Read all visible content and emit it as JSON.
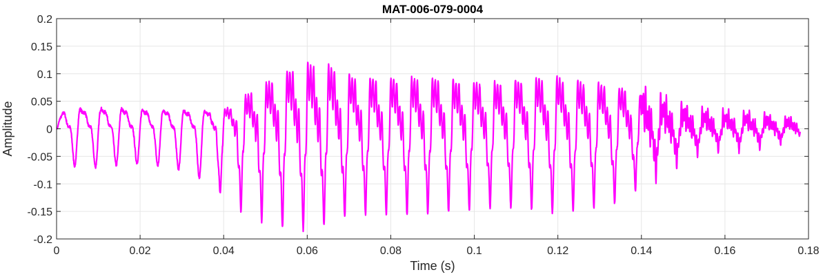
{
  "chart_data": {
    "type": "line",
    "title": "MAT-006-079-0004",
    "xlabel": "Time (s)",
    "ylabel": "Amplitude",
    "xlim": [
      0,
      0.18
    ],
    "ylim": [
      -0.2,
      0.2
    ],
    "xticks": [
      0,
      0.02,
      0.04,
      0.06,
      0.08,
      0.1,
      0.12,
      0.14,
      0.16,
      0.18
    ],
    "xtick_labels": [
      "0",
      "0.02",
      "0.04",
      "0.06",
      "0.08",
      "0.1",
      "0.12",
      "0.14",
      "0.16",
      "0.18"
    ],
    "yticks": [
      -0.2,
      -0.15,
      -0.1,
      -0.05,
      0,
      0.05,
      0.1,
      0.15,
      0.2
    ],
    "ytick_labels": [
      "-0.2",
      "-0.15",
      "-0.1",
      "-0.05",
      "0",
      "0.05",
      "0.1",
      "0.15",
      "0.2"
    ],
    "grid": true,
    "series": [
      {
        "color": "#ff00ff",
        "x_start": 0,
        "x_end": 0.178,
        "period": 0.00497,
        "envelope": [
          [
            0.0,
            0.065,
            0.066
          ],
          [
            0.01,
            0.07,
            0.07
          ],
          [
            0.02,
            0.068,
            0.062
          ],
          [
            0.03,
            0.063,
            0.075
          ],
          [
            0.036,
            0.06,
            0.095
          ],
          [
            0.042,
            0.065,
            0.12
          ],
          [
            0.048,
            0.11,
            0.14
          ],
          [
            0.054,
            0.15,
            0.15
          ],
          [
            0.058,
            0.175,
            0.155
          ],
          [
            0.062,
            0.18,
            0.15
          ],
          [
            0.066,
            0.17,
            0.14
          ],
          [
            0.072,
            0.14,
            0.13
          ],
          [
            0.08,
            0.135,
            0.13
          ],
          [
            0.088,
            0.14,
            0.13
          ],
          [
            0.096,
            0.13,
            0.125
          ],
          [
            0.104,
            0.125,
            0.12
          ],
          [
            0.112,
            0.135,
            0.12
          ],
          [
            0.12,
            0.14,
            0.13
          ],
          [
            0.128,
            0.125,
            0.12
          ],
          [
            0.136,
            0.11,
            0.11
          ],
          [
            0.142,
            0.08,
            0.07
          ],
          [
            0.148,
            0.055,
            0.05
          ],
          [
            0.155,
            0.04,
            0.03
          ],
          [
            0.165,
            0.035,
            0.028
          ],
          [
            0.178,
            0.02,
            0.015
          ]
        ]
      }
    ]
  }
}
